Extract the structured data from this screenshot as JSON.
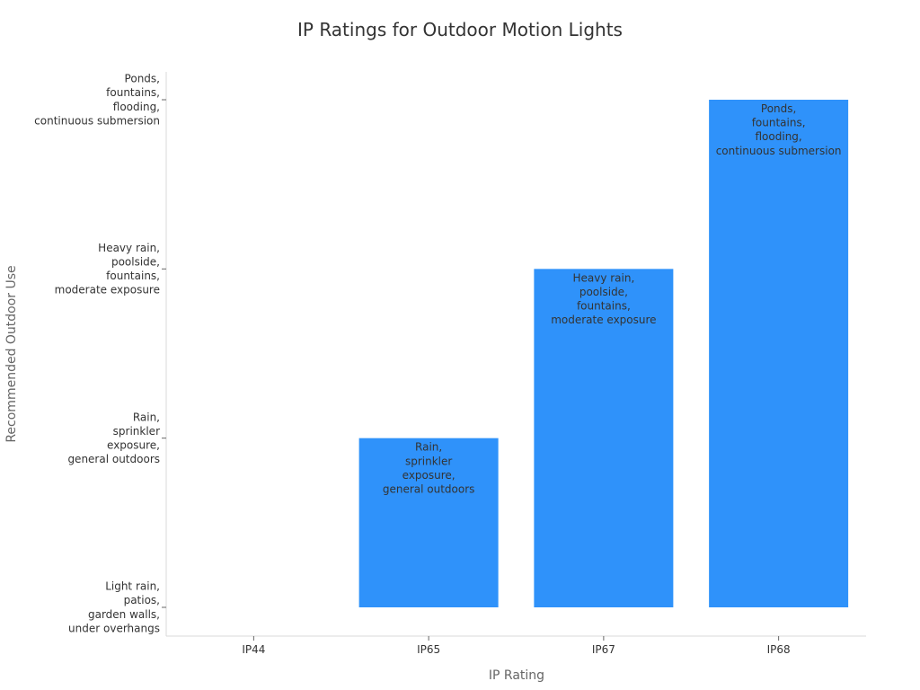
{
  "chart_data": {
    "type": "bar",
    "title": "IP Ratings for Outdoor Motion Lights",
    "xlabel": "IP Rating",
    "ylabel": "Recommended Outdoor Use",
    "categories": [
      "IP44",
      "IP65",
      "IP67",
      "IP68"
    ],
    "y_categories": [
      "Light rain, patios, garden walls, under overhangs",
      "Rain, sprinkler exposure, general outdoors",
      "Heavy rain, poolside, fountains, moderate exposure",
      "Ponds, fountains, flooding, continuous submersion"
    ],
    "y_tick_lines": [
      [
        "Light rain,",
        "patios,",
        "garden walls,",
        "under overhangs"
      ],
      [
        "Rain,",
        "sprinkler",
        "exposure,",
        "general outdoors"
      ],
      [
        "Heavy rain,",
        "poolside,",
        "fountains,",
        "moderate exposure"
      ],
      [
        "Ponds,",
        "fountains,",
        "flooding,",
        "continuous submersion"
      ]
    ],
    "values": [
      0,
      1,
      2,
      3
    ],
    "data_labels": [
      null,
      [
        "Rain,",
        "sprinkler",
        "exposure,",
        "general outdoors"
      ],
      [
        "Heavy rain,",
        "poolside,",
        "fountains,",
        "moderate exposure"
      ],
      [
        "Ponds,",
        "fountains,",
        "flooding,",
        "continuous submersion"
      ]
    ],
    "ylim": [
      0,
      3
    ],
    "bar_color": "#2f92fa",
    "grid": false,
    "legend": "none"
  }
}
